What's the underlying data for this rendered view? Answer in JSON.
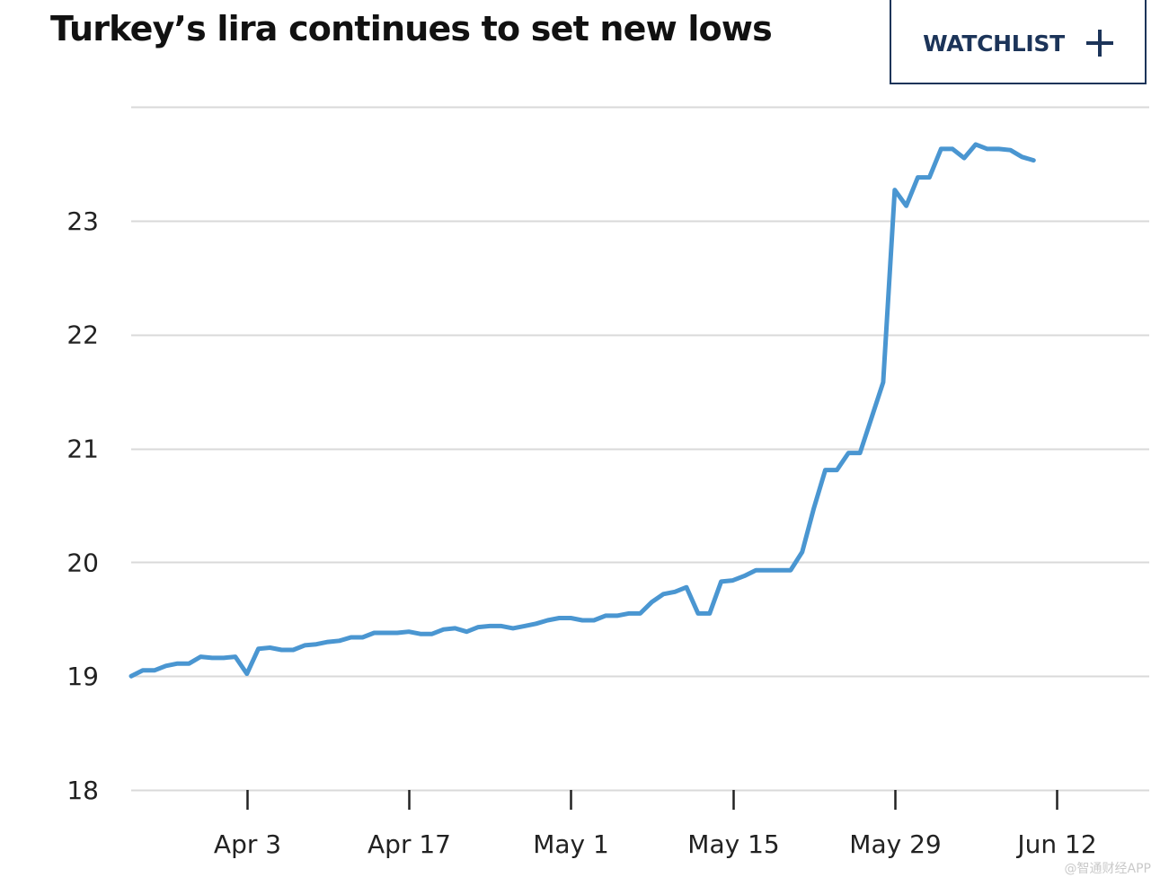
{
  "watchlist": {
    "label": "WATCHLIST",
    "icon": "plus-icon"
  },
  "watermark": "@智通财经APP",
  "colors": {
    "line": "#4a96d1",
    "grid": "#d9d9d9",
    "axis": "#222222",
    "button_border": "#1c3459"
  },
  "chart_data": {
    "type": "line",
    "title": "Turkey’s lira continues to set new lows",
    "xlabel": "",
    "ylabel": "",
    "ylim": [
      18,
      24
    ],
    "yticks": [
      18,
      19,
      20,
      21,
      22,
      23
    ],
    "xlim": [
      "2023-03-24",
      "2023-06-20"
    ],
    "xticks": [
      {
        "date": "2023-04-03",
        "label": "Apr 3"
      },
      {
        "date": "2023-04-17",
        "label": "Apr 17"
      },
      {
        "date": "2023-05-01",
        "label": "May 1"
      },
      {
        "date": "2023-05-15",
        "label": "May 15"
      },
      {
        "date": "2023-05-29",
        "label": "May 29"
      },
      {
        "date": "2023-06-12",
        "label": "Jun 12"
      }
    ],
    "grid": true,
    "series": [
      {
        "points": [
          [
            "2023-03-24",
            19.0
          ],
          [
            "2023-03-25",
            19.05
          ],
          [
            "2023-03-26",
            19.05
          ],
          [
            "2023-03-27",
            19.09
          ],
          [
            "2023-03-28",
            19.11
          ],
          [
            "2023-03-29",
            19.11
          ],
          [
            "2023-03-30",
            19.17
          ],
          [
            "2023-03-31",
            19.16
          ],
          [
            "2023-04-01",
            19.16
          ],
          [
            "2023-04-02",
            19.17
          ],
          [
            "2023-04-03",
            19.02
          ],
          [
            "2023-04-04",
            19.24
          ],
          [
            "2023-04-05",
            19.25
          ],
          [
            "2023-04-06",
            19.23
          ],
          [
            "2023-04-07",
            19.23
          ],
          [
            "2023-04-08",
            19.27
          ],
          [
            "2023-04-09",
            19.28
          ],
          [
            "2023-04-10",
            19.3
          ],
          [
            "2023-04-11",
            19.31
          ],
          [
            "2023-04-12",
            19.34
          ],
          [
            "2023-04-13",
            19.34
          ],
          [
            "2023-04-14",
            19.38
          ],
          [
            "2023-04-15",
            19.38
          ],
          [
            "2023-04-16",
            19.38
          ],
          [
            "2023-04-17",
            19.39
          ],
          [
            "2023-04-18",
            19.37
          ],
          [
            "2023-04-19",
            19.37
          ],
          [
            "2023-04-20",
            19.41
          ],
          [
            "2023-04-21",
            19.42
          ],
          [
            "2023-04-22",
            19.39
          ],
          [
            "2023-04-23",
            19.43
          ],
          [
            "2023-04-24",
            19.44
          ],
          [
            "2023-04-25",
            19.44
          ],
          [
            "2023-04-26",
            19.42
          ],
          [
            "2023-04-27",
            19.44
          ],
          [
            "2023-04-28",
            19.46
          ],
          [
            "2023-04-29",
            19.49
          ],
          [
            "2023-04-30",
            19.51
          ],
          [
            "2023-05-01",
            19.51
          ],
          [
            "2023-05-02",
            19.49
          ],
          [
            "2023-05-03",
            19.49
          ],
          [
            "2023-05-04",
            19.53
          ],
          [
            "2023-05-05",
            19.53
          ],
          [
            "2023-05-06",
            19.55
          ],
          [
            "2023-05-07",
            19.55
          ],
          [
            "2023-05-08",
            19.65
          ],
          [
            "2023-05-09",
            19.72
          ],
          [
            "2023-05-10",
            19.74
          ],
          [
            "2023-05-11",
            19.78
          ],
          [
            "2023-05-12",
            19.55
          ],
          [
            "2023-05-13",
            19.55
          ],
          [
            "2023-05-14",
            19.83
          ],
          [
            "2023-05-15",
            19.84
          ],
          [
            "2023-05-16",
            19.88
          ],
          [
            "2023-05-17",
            19.93
          ],
          [
            "2023-05-18",
            19.93
          ],
          [
            "2023-05-19",
            19.93
          ],
          [
            "2023-05-20",
            19.93
          ],
          [
            "2023-05-21",
            20.09
          ],
          [
            "2023-05-22",
            20.47
          ],
          [
            "2023-05-23",
            20.81
          ],
          [
            "2023-05-24",
            20.81
          ],
          [
            "2023-05-25",
            20.96
          ],
          [
            "2023-05-26",
            20.96
          ],
          [
            "2023-05-27",
            21.27
          ],
          [
            "2023-05-28",
            21.58
          ],
          [
            "2023-05-29",
            23.27
          ],
          [
            "2023-05-30",
            23.13
          ],
          [
            "2023-05-31",
            23.38
          ],
          [
            "2023-06-01",
            23.38
          ],
          [
            "2023-06-02",
            23.63
          ],
          [
            "2023-06-03",
            23.63
          ],
          [
            "2023-06-04",
            23.55
          ],
          [
            "2023-06-05",
            23.67
          ],
          [
            "2023-06-06",
            23.63
          ],
          [
            "2023-06-07",
            23.63
          ],
          [
            "2023-06-08",
            23.62
          ],
          [
            "2023-06-09",
            23.56
          ],
          [
            "2023-06-10",
            23.53
          ]
        ]
      }
    ]
  }
}
